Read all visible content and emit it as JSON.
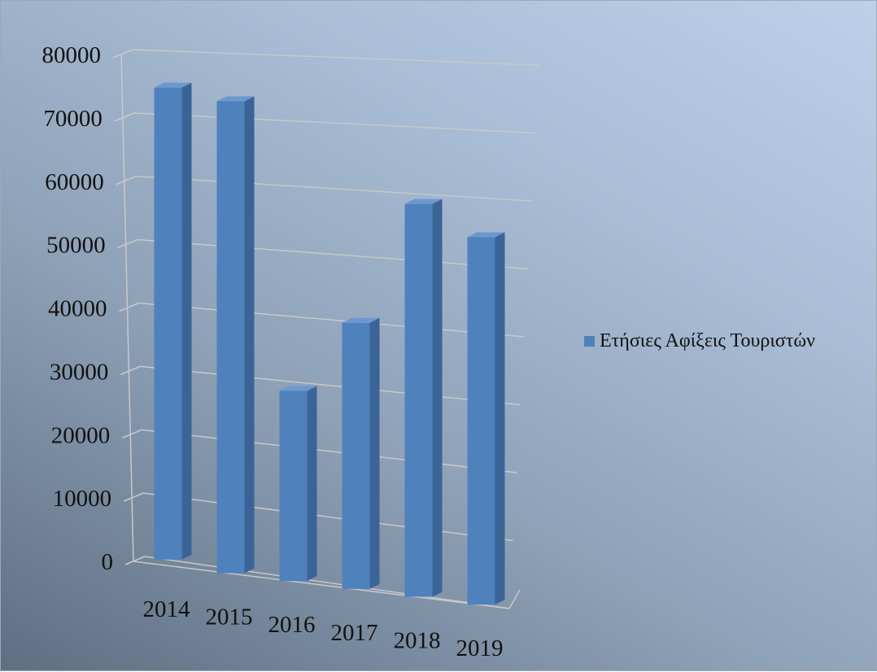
{
  "chart_data": {
    "type": "bar",
    "style": "3d-column",
    "categories": [
      "2014",
      "2015",
      "2016",
      "2017",
      "2018",
      "2019"
    ],
    "series": [
      {
        "name": "Ετήσιες Αφίξεις Τουριστών",
        "color": "#4f81bd",
        "values": [
          74500,
          74500,
          30000,
          42000,
          62000,
          58000
        ]
      }
    ],
    "yticks": [
      "0",
      "10000",
      "20000",
      "30000",
      "40000",
      "50000",
      "60000",
      "70000",
      "80000"
    ],
    "ylim": [
      0,
      80000
    ],
    "grid": true,
    "legend_position": "right",
    "title": "",
    "xlabel": "",
    "ylabel": ""
  }
}
